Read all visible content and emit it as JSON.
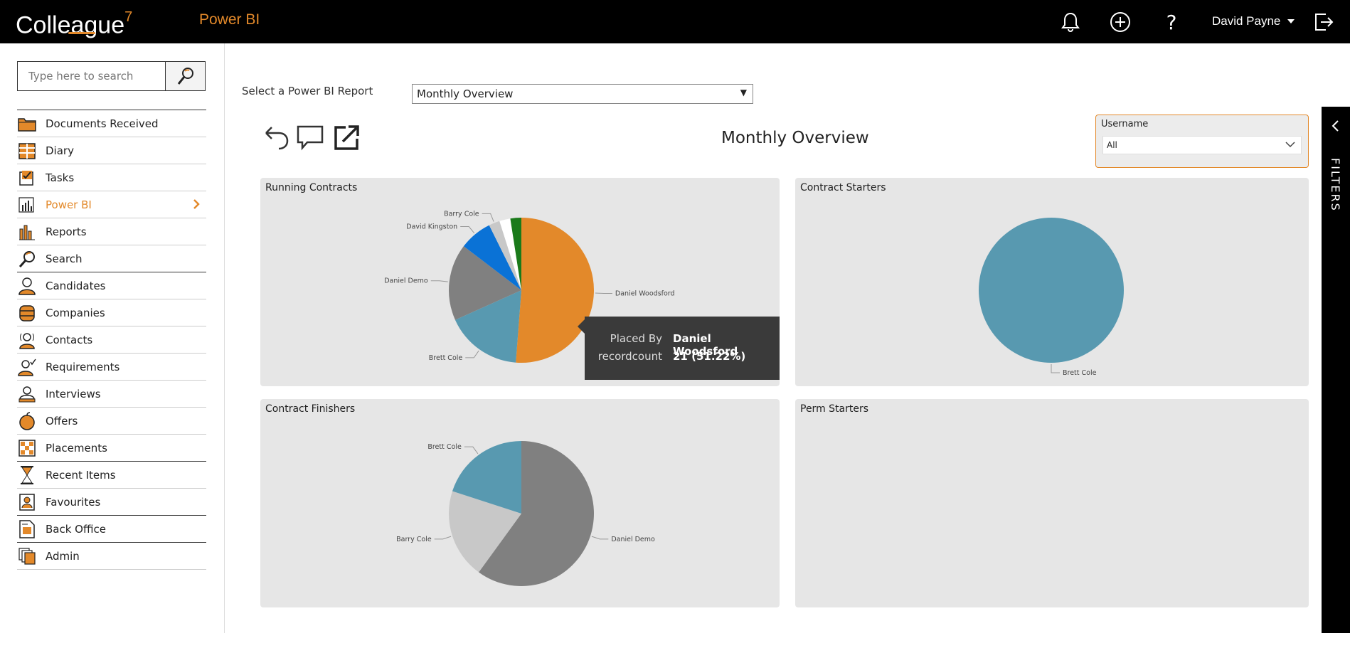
{
  "topbar": {
    "logo": "Colleague",
    "logo_sup": "7",
    "app_title": "Power BI",
    "user_name": "David Payne"
  },
  "sidebar": {
    "search_placeholder": "Type here to search",
    "items": [
      {
        "label": "Documents Received",
        "icon": "folder-icon"
      },
      {
        "label": "Diary",
        "icon": "calendar-icon"
      },
      {
        "label": "Tasks",
        "icon": "checklist-icon"
      },
      {
        "label": "Power BI",
        "icon": "power-bi-icon",
        "active": true
      },
      {
        "label": "Reports",
        "icon": "bar-chart-icon"
      },
      {
        "label": "Search",
        "icon": "magnifier-icon"
      },
      {
        "label": "Candidates",
        "icon": "person-icon"
      },
      {
        "label": "Companies",
        "icon": "building-icon"
      },
      {
        "label": "Contacts",
        "icon": "contact-icon"
      },
      {
        "label": "Requirements",
        "icon": "requirement-icon"
      },
      {
        "label": "Interviews",
        "icon": "interview-icon"
      },
      {
        "label": "Offers",
        "icon": "offer-icon"
      },
      {
        "label": "Placements",
        "icon": "placement-icon"
      },
      {
        "label": "Recent Items",
        "icon": "hourglass-icon"
      },
      {
        "label": "Favourites",
        "icon": "favourite-icon"
      },
      {
        "label": "Back Office",
        "icon": "document-icon"
      },
      {
        "label": "Admin",
        "icon": "admin-icon"
      }
    ]
  },
  "main": {
    "report_label": "Select a Power BI Report",
    "report_selected": "Monthly Overview",
    "report_title": "Monthly Overview",
    "slicer_label": "Username",
    "slicer_value": "All",
    "filters_label": "FILTERS",
    "tiles": {
      "running": "Running Contracts",
      "starters": "Contract Starters",
      "finishers": "Contract Finishers",
      "perm": "Perm Starters"
    },
    "tooltip": {
      "key1": "Placed By",
      "val1": "Daniel Woodsford",
      "key2": "recordcount",
      "val2": "21 (51.22%)"
    }
  },
  "colors": {
    "accent": "#e3892a",
    "teal": "#5899b0",
    "grey": "#808080",
    "light_grey": "#c8c8c8",
    "blue": "#0a72d6",
    "green": "#1a7a1a"
  },
  "chart_data": [
    {
      "type": "pie",
      "title": "Running Contracts",
      "slices": [
        {
          "label": "Daniel Woodsford",
          "value": 21,
          "color": "#e3892a"
        },
        {
          "label": "Brett Cole",
          "value": 7,
          "color": "#5899b0"
        },
        {
          "label": "Daniel Demo",
          "value": 7,
          "color": "#808080"
        },
        {
          "label": "David Kingston",
          "value": 3,
          "color": "#0a72d6"
        },
        {
          "label": "Barry Cole",
          "value": 1,
          "color": "#c8c8c8"
        },
        {
          "label": "",
          "value": 1,
          "color": "#ffffff"
        },
        {
          "label": "",
          "value": 1,
          "color": "#1a7a1a"
        }
      ]
    },
    {
      "type": "pie",
      "title": "Contract Starters",
      "slices": [
        {
          "label": "Brett Cole",
          "value": 1,
          "color": "#5899b0"
        }
      ]
    },
    {
      "type": "pie",
      "title": "Contract Finishers",
      "slices": [
        {
          "label": "Daniel Demo",
          "value": 3,
          "color": "#808080"
        },
        {
          "label": "Barry Cole",
          "value": 1,
          "color": "#c8c8c8"
        },
        {
          "label": "Brett Cole",
          "value": 1,
          "color": "#5899b0"
        }
      ]
    }
  ]
}
